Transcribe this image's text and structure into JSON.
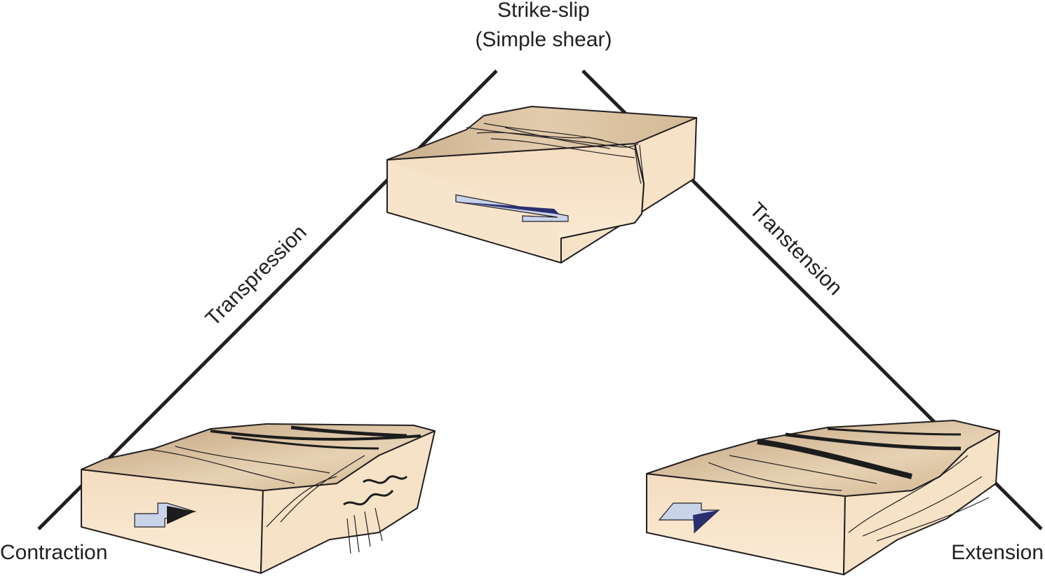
{
  "vertices": {
    "top_line1": "Strike-slip",
    "top_line2": "(Simple shear)",
    "bottom_left": "Contraction",
    "bottom_right": "Extension"
  },
  "edges": {
    "left": "Transpression",
    "right": "Transtension"
  },
  "colors": {
    "line": "#231f20",
    "block_side": "#f8e6cd",
    "block_top": "#d9c1a0",
    "arrow_light": "#c9d3ea",
    "arrow_dark": "#2b2f6e",
    "arrow_black": "#1c1c1c"
  }
}
